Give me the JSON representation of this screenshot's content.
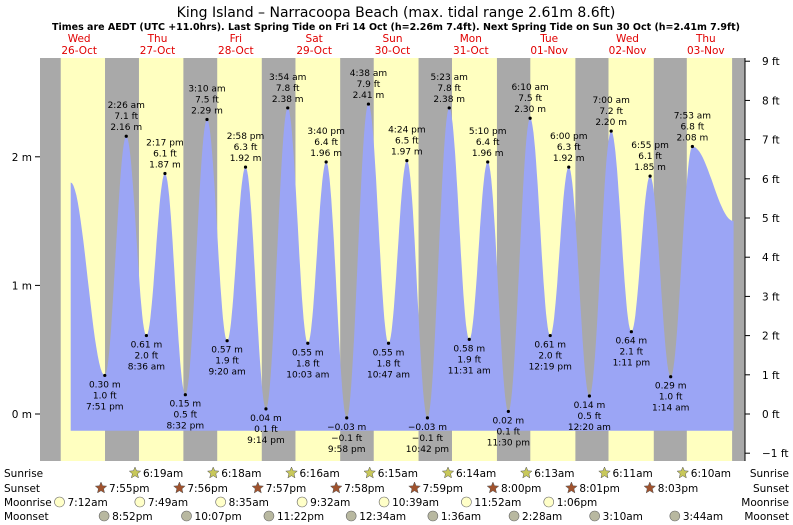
{
  "chart_data": {
    "type": "area",
    "title": "King Island – Narracoopa Beach (max. tidal range 2.61m 8.6ft)",
    "subtitle": "Times are AEDT (UTC +11.0hrs). Last Spring Tide on Fri 14 Oct (h=2.26m 7.4ft). Next Spring Tide on Sun 30 Oct (h=2.41m 7.9ft)",
    "x_range_hours": [
      0,
      216
    ],
    "y_range_m": [
      -0.35,
      2.75
    ],
    "y_left_ticks": [
      {
        "v": 0,
        "label": "0 m"
      },
      {
        "v": 1,
        "label": "1 m"
      },
      {
        "v": 2,
        "label": "2 m"
      }
    ],
    "y_right_ticks": [
      {
        "v": -1,
        "label": "−1 ft"
      },
      {
        "v": 0,
        "label": "0 ft"
      },
      {
        "v": 1,
        "label": "1 ft"
      },
      {
        "v": 2,
        "label": "2 ft"
      },
      {
        "v": 3,
        "label": "3 ft"
      },
      {
        "v": 4,
        "label": "4 ft"
      },
      {
        "v": 5,
        "label": "5 ft"
      },
      {
        "v": 6,
        "label": "6 ft"
      },
      {
        "v": 7,
        "label": "7 ft"
      },
      {
        "v": 8,
        "label": "8 ft"
      },
      {
        "v": 9,
        "label": "9 ft"
      }
    ],
    "days": [
      {
        "dow": "Wed",
        "date": "26-Oct",
        "sunrise": 6.35,
        "sunset": 19.92
      },
      {
        "dow": "Thu",
        "date": "27-Oct",
        "sunrise": 6.32,
        "sunset": 19.93
      },
      {
        "dow": "Fri",
        "date": "28-Oct",
        "sunrise": 6.3,
        "sunset": 19.95
      },
      {
        "dow": "Sat",
        "date": "29-Oct",
        "sunrise": 6.27,
        "sunset": 19.97
      },
      {
        "dow": "Sun",
        "date": "30-Oct",
        "sunrise": 6.25,
        "sunset": 19.98
      },
      {
        "dow": "Mon",
        "date": "31-Oct",
        "sunrise": 6.23,
        "sunset": 20.0
      },
      {
        "dow": "Tue",
        "date": "01-Nov",
        "sunrise": 6.22,
        "sunset": 20.03
      },
      {
        "dow": "Wed",
        "date": "02-Nov",
        "sunrise": 6.18,
        "sunset": 20.05
      },
      {
        "dow": "Thu",
        "date": "03-Nov",
        "sunrise": 6.17,
        "sunset": 20.05
      }
    ],
    "curve_start": {
      "t": 9.4,
      "h": 1.8
    },
    "curve_end": {
      "t": 212.5,
      "h": 1.5
    },
    "tides": [
      {
        "t": 19.85,
        "h": 0.3,
        "m": "0.30 m",
        "ft": "1.0 ft",
        "time": "7:51 pm",
        "type": "low"
      },
      {
        "t": 26.43,
        "h": 2.16,
        "m": "2.16 m",
        "ft": "7.1 ft",
        "time": "2:26 am",
        "type": "high"
      },
      {
        "t": 32.6,
        "h": 0.61,
        "m": "0.61 m",
        "ft": "2.0 ft",
        "time": "8:36 am",
        "type": "low"
      },
      {
        "t": 38.28,
        "h": 1.87,
        "m": "1.87 m",
        "ft": "6.1 ft",
        "time": "2:17 pm",
        "type": "high"
      },
      {
        "t": 44.53,
        "h": 0.15,
        "m": "0.15 m",
        "ft": "0.5 ft",
        "time": "8:32 pm",
        "type": "low"
      },
      {
        "t": 51.17,
        "h": 2.29,
        "m": "2.29 m",
        "ft": "7.5 ft",
        "time": "3:10 am",
        "type": "high"
      },
      {
        "t": 57.33,
        "h": 0.57,
        "m": "0.57 m",
        "ft": "1.9 ft",
        "time": "9:20 am",
        "type": "low"
      },
      {
        "t": 62.97,
        "h": 1.92,
        "m": "1.92 m",
        "ft": "6.3 ft",
        "time": "2:58 pm",
        "type": "high"
      },
      {
        "t": 69.23,
        "h": 0.04,
        "m": "0.04 m",
        "ft": "0.1 ft",
        "time": "9:14 pm",
        "type": "low"
      },
      {
        "t": 75.9,
        "h": 2.38,
        "m": "2.38 m",
        "ft": "7.8 ft",
        "time": "3:54 am",
        "type": "high"
      },
      {
        "t": 82.05,
        "h": 0.55,
        "m": "0.55 m",
        "ft": "1.8 ft",
        "time": "10:03 am",
        "type": "low"
      },
      {
        "t": 87.67,
        "h": 1.96,
        "m": "1.96 m",
        "ft": "6.4 ft",
        "time": "3:40 pm",
        "type": "high"
      },
      {
        "t": 93.97,
        "h": -0.03,
        "m": "−0.03 m",
        "ft": "−0.1 ft",
        "time": "9:58 pm",
        "type": "low"
      },
      {
        "t": 100.63,
        "h": 2.41,
        "m": "2.41 m",
        "ft": "7.9 ft",
        "time": "4:38 am",
        "type": "high"
      },
      {
        "t": 106.78,
        "h": 0.55,
        "m": "0.55 m",
        "ft": "1.8 ft",
        "time": "10:47 am",
        "type": "low"
      },
      {
        "t": 112.4,
        "h": 1.97,
        "m": "1.97 m",
        "ft": "6.5 ft",
        "time": "4:24 pm",
        "type": "high"
      },
      {
        "t": 118.7,
        "h": -0.03,
        "m": "−0.03 m",
        "ft": "−0.1 ft",
        "time": "10:42 pm",
        "type": "low"
      },
      {
        "t": 125.38,
        "h": 2.38,
        "m": "2.38 m",
        "ft": "7.8 ft",
        "time": "5:23 am",
        "type": "high"
      },
      {
        "t": 131.52,
        "h": 0.58,
        "m": "0.58 m",
        "ft": "1.9 ft",
        "time": "11:31 am",
        "type": "low"
      },
      {
        "t": 137.17,
        "h": 1.96,
        "m": "1.96 m",
        "ft": "6.4 ft",
        "time": "5:10 pm",
        "type": "high"
      },
      {
        "t": 143.5,
        "h": 0.02,
        "m": "0.02 m",
        "ft": "0.1 ft",
        "time": "11:30 pm",
        "type": "low"
      },
      {
        "t": 150.17,
        "h": 2.3,
        "m": "2.30 m",
        "ft": "7.5 ft",
        "time": "6:10 am",
        "type": "high"
      },
      {
        "t": 156.32,
        "h": 0.61,
        "m": "0.61 m",
        "ft": "2.0 ft",
        "time": "12:19 pm",
        "type": "low"
      },
      {
        "t": 162.0,
        "h": 1.92,
        "m": "1.92 m",
        "ft": "6.3 ft",
        "time": "6:00 pm",
        "type": "high"
      },
      {
        "t": 168.33,
        "h": 0.14,
        "m": "0.14 m",
        "ft": "0.5 ft",
        "time": "12:20 am",
        "type": "low"
      },
      {
        "t": 175.0,
        "h": 2.2,
        "m": "2.20 m",
        "ft": "7.2 ft",
        "time": "7:00 am",
        "type": "high"
      },
      {
        "t": 181.18,
        "h": 0.64,
        "m": "0.64 m",
        "ft": "2.1 ft",
        "time": "1:11 pm",
        "type": "low"
      },
      {
        "t": 186.92,
        "h": 1.85,
        "m": "1.85 m",
        "ft": "6.1 ft",
        "time": "6:55 pm",
        "type": "high"
      },
      {
        "t": 193.23,
        "h": 0.29,
        "m": "0.29 m",
        "ft": "1.0 ft",
        "time": "1:14 am",
        "type": "low"
      },
      {
        "t": 199.88,
        "h": 2.08,
        "m": "2.08 m",
        "ft": "6.8 ft",
        "time": "7:53 am",
        "type": "high"
      }
    ],
    "astro": {
      "row_labels": [
        "Sunrise",
        "Sunset",
        "Moonrise",
        "Moonset"
      ],
      "sunrise": [
        {
          "t": 30.32,
          "time": "6:19am"
        },
        {
          "t": 54.3,
          "time": "6:18am"
        },
        {
          "t": 78.27,
          "time": "6:16am"
        },
        {
          "t": 102.25,
          "time": "6:15am"
        },
        {
          "t": 126.23,
          "time": "6:14am"
        },
        {
          "t": 150.22,
          "time": "6:13am"
        },
        {
          "t": 174.18,
          "time": "6:11am"
        },
        {
          "t": 198.17,
          "time": "6:10am"
        }
      ],
      "sunset": [
        {
          "t": 19.92,
          "time": "7:55pm"
        },
        {
          "t": 43.93,
          "time": "7:56pm"
        },
        {
          "t": 67.95,
          "time": "7:57pm"
        },
        {
          "t": 91.97,
          "time": "7:58pm"
        },
        {
          "t": 115.98,
          "time": "7:59pm"
        },
        {
          "t": 140.0,
          "time": "8:00pm"
        },
        {
          "t": 164.03,
          "time": "8:01pm"
        },
        {
          "t": 188.05,
          "time": "8:03pm"
        }
      ],
      "moonrise": [
        {
          "t": 7.2,
          "time": "7:12am"
        },
        {
          "t": 31.82,
          "time": "7:49am"
        },
        {
          "t": 56.58,
          "time": "8:35am"
        },
        {
          "t": 81.53,
          "time": "9:32am"
        },
        {
          "t": 106.65,
          "time": "10:39am"
        },
        {
          "t": 131.87,
          "time": "11:52am"
        },
        {
          "t": 157.1,
          "time": "1:06pm"
        }
      ],
      "moonset": [
        {
          "t": 20.87,
          "time": "8:52pm"
        },
        {
          "t": 46.12,
          "time": "10:07pm"
        },
        {
          "t": 71.37,
          "time": "11:22pm"
        },
        {
          "t": 96.57,
          "time": "12:34am"
        },
        {
          "t": 121.6,
          "time": "1:36am"
        },
        {
          "t": 146.47,
          "time": "2:28am"
        },
        {
          "t": 171.17,
          "time": "3:10am"
        },
        {
          "t": 195.73,
          "time": "3:44am"
        }
      ]
    },
    "colors": {
      "day": "#ffffc0",
      "night": "#a9a9a9",
      "water": "#9ba5f5",
      "day_labels": "#e00000",
      "sun_marker": "#c8c85a",
      "sunset_marker": "#a0522d",
      "moonrise_marker": "#ffffc8",
      "moonset_marker": "#b8b8a0"
    }
  }
}
